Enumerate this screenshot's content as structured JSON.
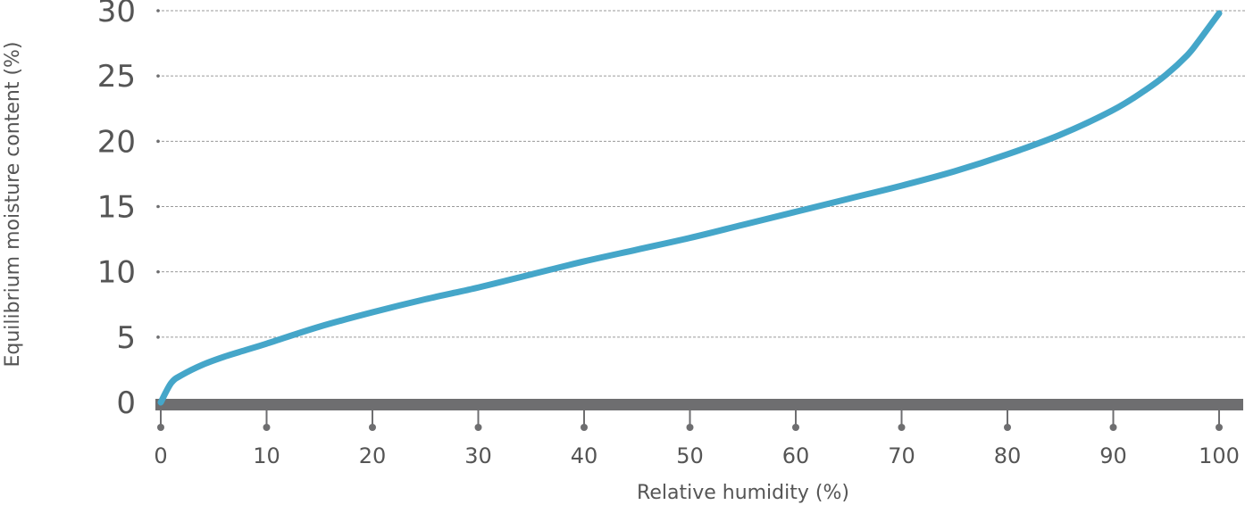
{
  "chart_data": {
    "type": "line",
    "title": "",
    "xlabel": "Relative humidity (%)",
    "ylabel": "Equilibrium moisture content (%)",
    "xlim": [
      0,
      100
    ],
    "ylim": [
      0,
      30
    ],
    "x_ticks": [
      0,
      10,
      20,
      30,
      40,
      50,
      60,
      70,
      80,
      90,
      100
    ],
    "y_ticks": [
      0,
      5,
      10,
      15,
      20,
      25,
      30
    ],
    "grid": true,
    "series": [
      {
        "color": "#45a6c9",
        "x": [
          0,
          1,
          2,
          4,
          6,
          8,
          10,
          15,
          20,
          25,
          30,
          35,
          40,
          45,
          50,
          55,
          60,
          65,
          70,
          75,
          80,
          85,
          90,
          93,
          95,
          97,
          98,
          99,
          100
        ],
        "y": [
          0,
          1.5,
          2.1,
          2.9,
          3.5,
          4.0,
          4.5,
          5.8,
          6.9,
          7.9,
          8.8,
          9.8,
          10.8,
          11.7,
          12.6,
          13.6,
          14.6,
          15.6,
          16.6,
          17.7,
          19.0,
          20.5,
          22.4,
          23.9,
          25.1,
          26.6,
          27.6,
          28.7,
          29.8
        ]
      }
    ]
  },
  "colors": {
    "baseline": "#6e6e70",
    "grid": "#9a9a9a",
    "text": "#555555"
  }
}
